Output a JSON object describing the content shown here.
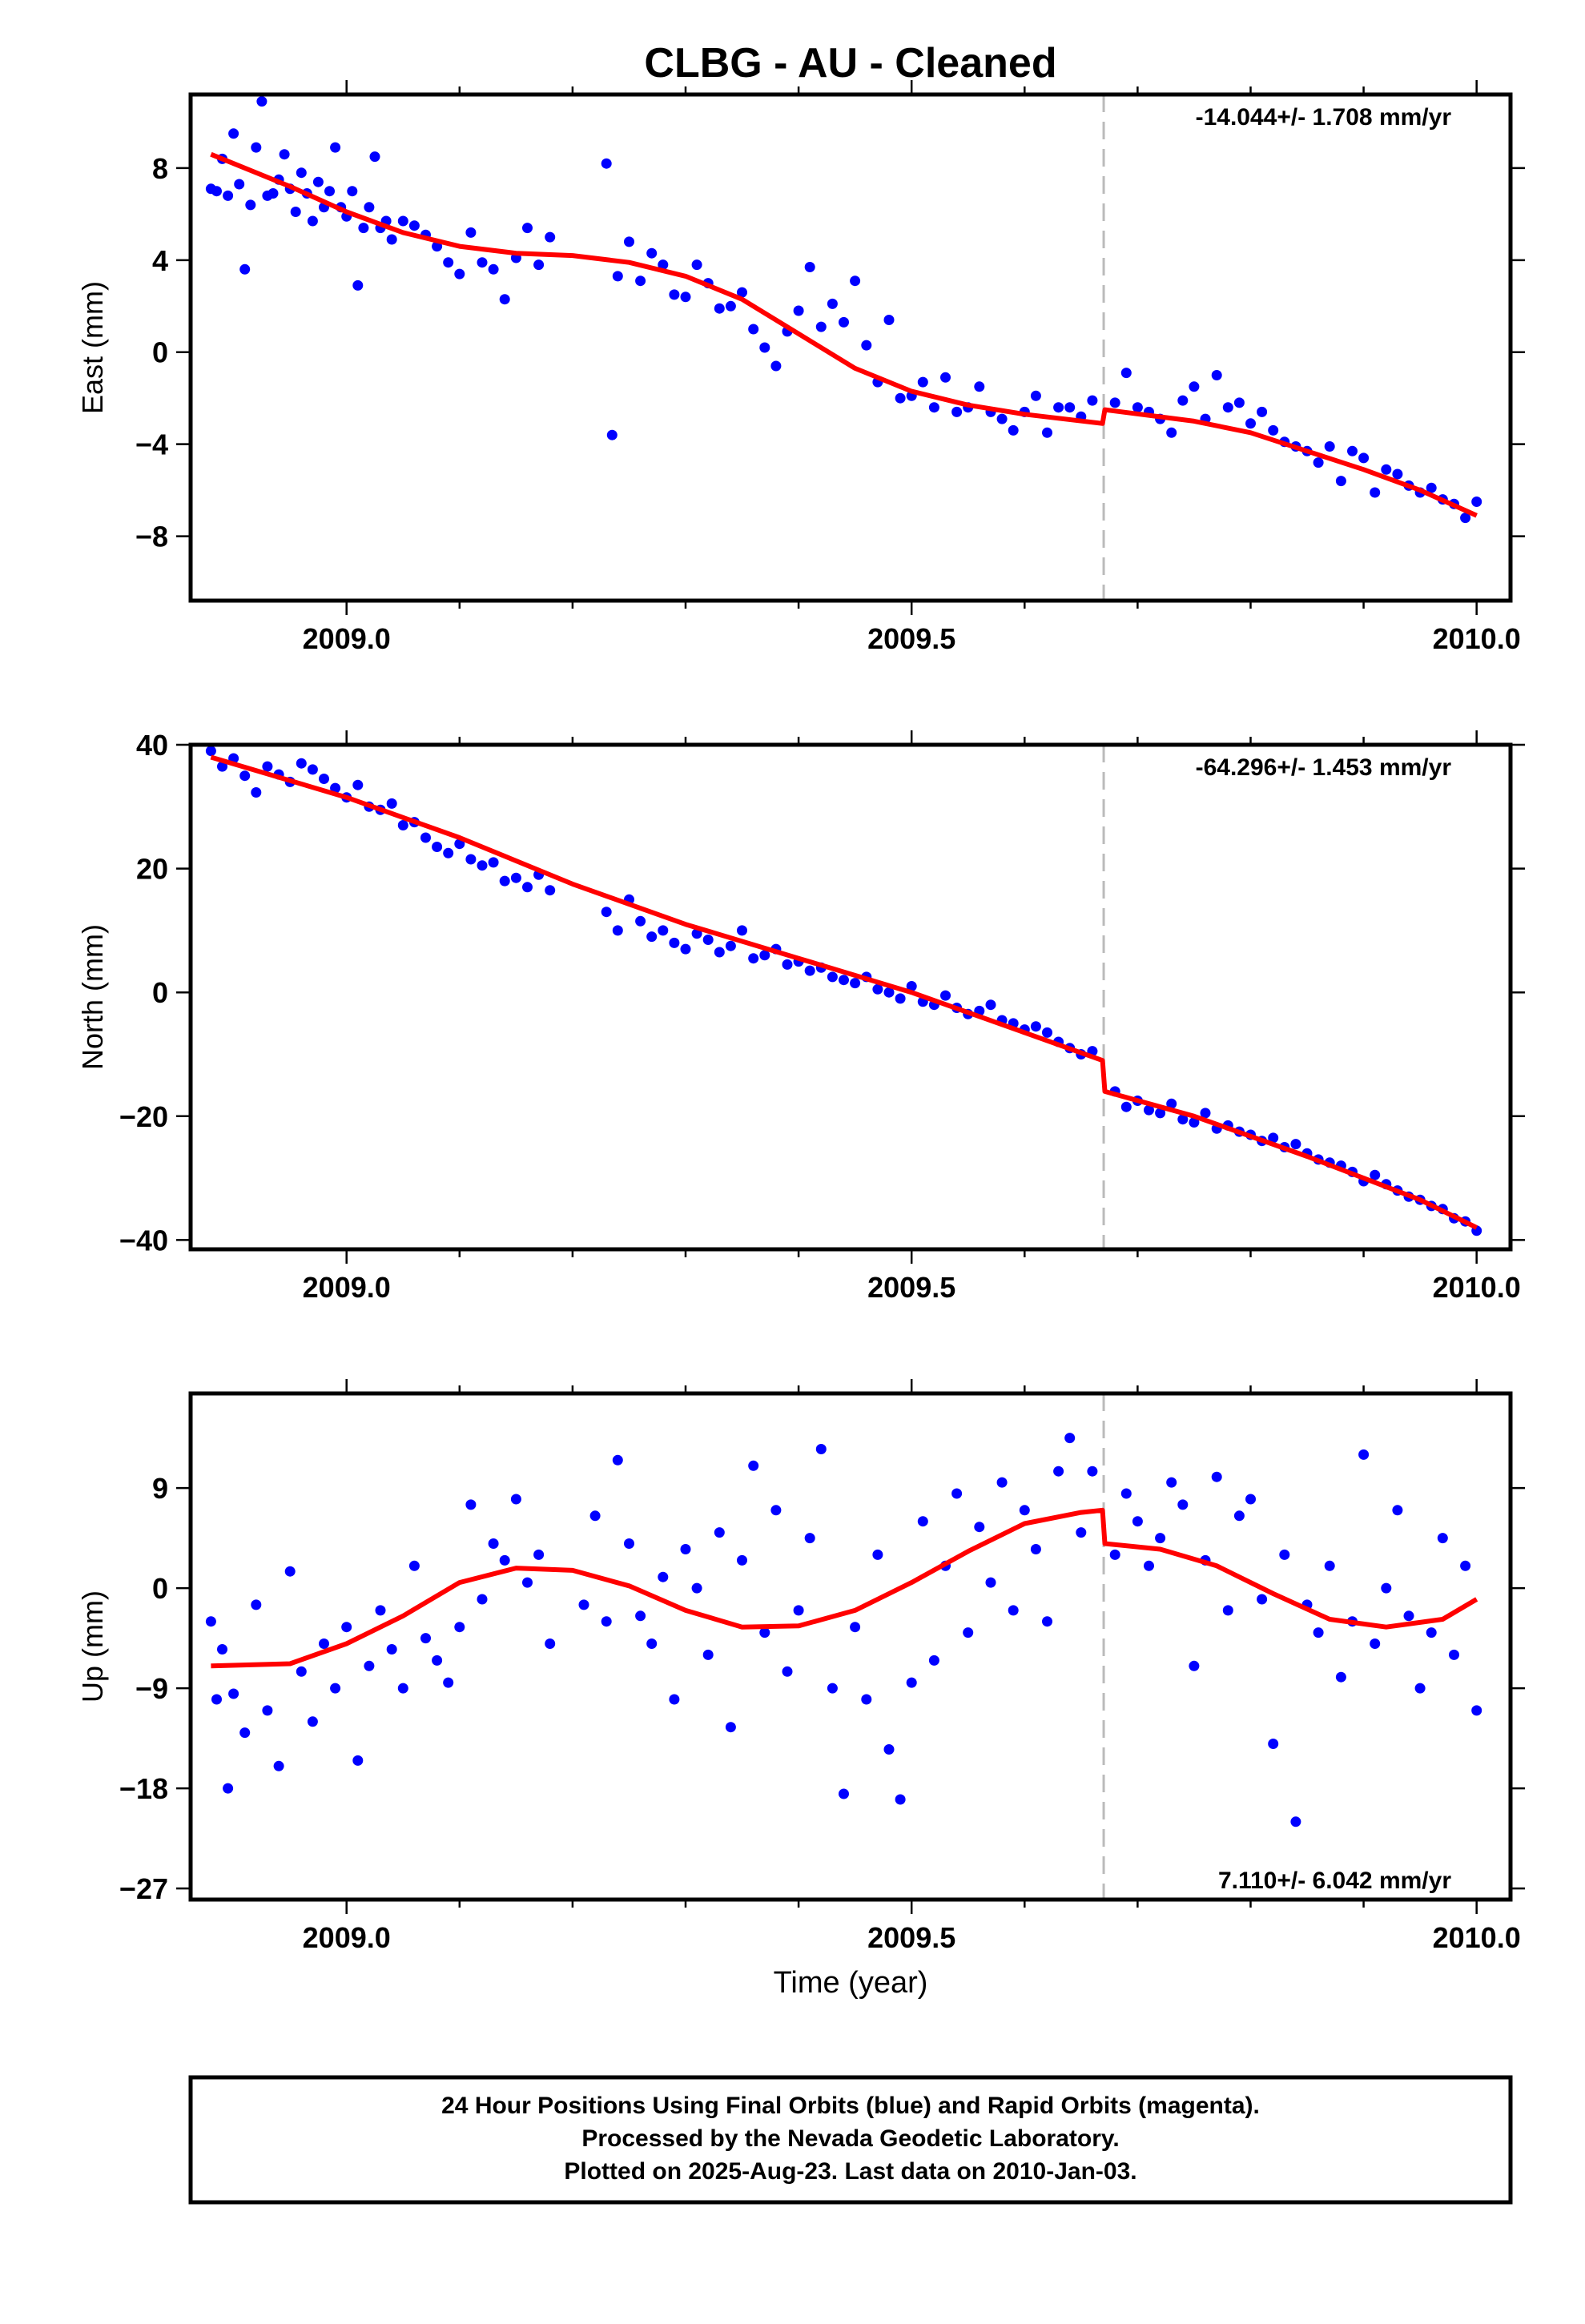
{
  "chart_data": {
    "type": "scatter",
    "title": "CLBG  - AU - Cleaned",
    "xlabel": "Time (year)",
    "x_ticks": [
      "2009.0",
      "2009.5",
      "2010.0"
    ],
    "xlim": [
      2008.862,
      2010.03
    ],
    "offset_epoch": 2009.67,
    "colors": {
      "points": "#0000ff",
      "model": "#ff0000",
      "offset_line": "#bbbbbb"
    },
    "panels": [
      {
        "name": "east",
        "ylabel": "East (mm)",
        "ylim": [
          -10.8,
          11.2
        ],
        "y_ticks": [
          "8",
          "4",
          "0",
          "−4",
          "−8"
        ],
        "y_tick_values": [
          8,
          4,
          0,
          -4,
          -8
        ],
        "rate_text": "-14.044+/- 1.708 mm/yr",
        "rate_position": "top-right",
        "model": {
          "x": [
            2008.88,
            2008.95,
            2009.0,
            2009.05,
            2009.1,
            2009.15,
            2009.2,
            2009.25,
            2009.3,
            2009.35,
            2009.4,
            2009.45,
            2009.5,
            2009.55,
            2009.6,
            2009.669,
            2009.671,
            2009.75,
            2009.8,
            2009.85,
            2009.9,
            2009.95,
            2010.0
          ],
          "y": [
            8.6,
            7.2,
            6.1,
            5.2,
            4.6,
            4.3,
            4.2,
            3.9,
            3.3,
            2.3,
            0.8,
            -0.7,
            -1.7,
            -2.3,
            -2.7,
            -3.1,
            -2.5,
            -3.0,
            -3.5,
            -4.3,
            -5.1,
            -6.0,
            -7.1
          ]
        },
        "points": {
          "x": [
            2008.88,
            2008.885,
            2008.89,
            2008.895,
            2008.9,
            2008.905,
            2008.91,
            2008.915,
            2008.92,
            2008.925,
            2008.93,
            2008.935,
            2008.94,
            2008.945,
            2008.95,
            2008.955,
            2008.96,
            2008.965,
            2008.97,
            2008.975,
            2008.98,
            2008.985,
            2008.99,
            2008.995,
            2009.0,
            2009.005,
            2009.01,
            2009.015,
            2009.02,
            2009.025,
            2009.03,
            2009.035,
            2009.04,
            2009.05,
            2009.06,
            2009.07,
            2009.08,
            2009.09,
            2009.1,
            2009.11,
            2009.12,
            2009.13,
            2009.14,
            2009.15,
            2009.16,
            2009.17,
            2009.18,
            2009.23,
            2009.235,
            2009.24,
            2009.25,
            2009.26,
            2009.27,
            2009.28,
            2009.29,
            2009.3,
            2009.31,
            2009.32,
            2009.33,
            2009.34,
            2009.35,
            2009.36,
            2009.37,
            2009.38,
            2009.39,
            2009.4,
            2009.41,
            2009.42,
            2009.43,
            2009.44,
            2009.45,
            2009.46,
            2009.47,
            2009.48,
            2009.49,
            2009.5,
            2009.51,
            2009.52,
            2009.53,
            2009.54,
            2009.55,
            2009.56,
            2009.57,
            2009.58,
            2009.59,
            2009.6,
            2009.61,
            2009.62,
            2009.63,
            2009.64,
            2009.65,
            2009.66,
            2009.68,
            2009.69,
            2009.7,
            2009.71,
            2009.72,
            2009.73,
            2009.74,
            2009.75,
            2009.76,
            2009.77,
            2009.78,
            2009.79,
            2009.8,
            2009.81,
            2009.82,
            2009.83,
            2009.84,
            2009.85,
            2009.86,
            2009.87,
            2009.88,
            2009.89,
            2009.9,
            2009.91,
            2009.92,
            2009.93,
            2009.94,
            2009.95,
            2009.96,
            2009.97,
            2009.98,
            2009.99,
            2010.0
          ],
          "y": [
            7.1,
            7.0,
            8.4,
            6.8,
            9.5,
            7.3,
            3.6,
            6.4,
            8.9,
            10.9,
            6.8,
            6.9,
            7.5,
            8.6,
            7.1,
            6.1,
            7.8,
            6.9,
            5.7,
            7.4,
            6.3,
            7.0,
            8.9,
            6.3,
            5.9,
            7.0,
            2.9,
            5.4,
            6.3,
            8.5,
            5.4,
            5.7,
            4.9,
            5.7,
            5.5,
            5.1,
            4.6,
            3.9,
            3.4,
            5.2,
            3.9,
            3.6,
            2.3,
            4.1,
            5.4,
            3.8,
            5.0,
            8.2,
            -3.6,
            3.3,
            4.8,
            3.1,
            4.3,
            3.8,
            2.5,
            2.4,
            3.8,
            3.0,
            1.9,
            2.0,
            2.6,
            1.0,
            0.2,
            -0.6,
            0.9,
            1.8,
            3.7,
            1.1,
            2.1,
            1.3,
            3.1,
            0.3,
            -1.3,
            1.4,
            -2.0,
            -1.9,
            -1.3,
            -2.4,
            -1.1,
            -2.6,
            -2.4,
            -1.5,
            -2.6,
            -2.9,
            -3.4,
            -2.6,
            -1.9,
            -3.5,
            -2.4,
            -2.4,
            -2.8,
            -2.1,
            -2.2,
            -0.9,
            -2.4,
            -2.6,
            -2.9,
            -3.5,
            -2.1,
            -1.5,
            -2.9,
            -1.0,
            -2.4,
            -2.2,
            -3.1,
            -2.6,
            -3.4,
            -3.9,
            -4.1,
            -4.3,
            -4.8,
            -4.1,
            -5.6,
            -4.3,
            -4.6,
            -6.1,
            -5.1,
            -5.3,
            -5.8,
            -6.1,
            -5.9,
            -6.4,
            -6.6,
            -7.2,
            -6.5
          ]
        }
      },
      {
        "name": "north",
        "ylabel": "North (mm)",
        "ylim": [
          -41.5,
          40.0
        ],
        "y_ticks": [
          "40",
          "20",
          "0",
          "−20",
          "−40"
        ],
        "y_tick_values": [
          40,
          20,
          0,
          -20,
          -40
        ],
        "rate_text": "-64.296+/- 1.453 mm/yr",
        "rate_position": "top-right",
        "model": {
          "x": [
            2008.88,
            2009.0,
            2009.1,
            2009.2,
            2009.3,
            2009.4,
            2009.5,
            2009.6,
            2009.669,
            2009.671,
            2009.75,
            2009.85,
            2009.95,
            2010.0
          ],
          "y": [
            38.0,
            31.5,
            25.0,
            17.5,
            11.0,
            5.5,
            0.0,
            -6.5,
            -11.0,
            -16.0,
            -20.0,
            -26.5,
            -33.5,
            -38.0
          ]
        },
        "points": {
          "x": [
            2008.88,
            2008.89,
            2008.9,
            2008.91,
            2008.92,
            2008.93,
            2008.94,
            2008.95,
            2008.96,
            2008.97,
            2008.98,
            2008.99,
            2009.0,
            2009.01,
            2009.02,
            2009.03,
            2009.04,
            2009.05,
            2009.06,
            2009.07,
            2009.08,
            2009.09,
            2009.1,
            2009.11,
            2009.12,
            2009.13,
            2009.14,
            2009.15,
            2009.16,
            2009.17,
            2009.18,
            2009.23,
            2009.24,
            2009.25,
            2009.26,
            2009.27,
            2009.28,
            2009.29,
            2009.3,
            2009.31,
            2009.32,
            2009.33,
            2009.34,
            2009.35,
            2009.36,
            2009.37,
            2009.38,
            2009.39,
            2009.4,
            2009.41,
            2009.42,
            2009.43,
            2009.44,
            2009.45,
            2009.46,
            2009.47,
            2009.48,
            2009.49,
            2009.5,
            2009.51,
            2009.52,
            2009.53,
            2009.54,
            2009.55,
            2009.56,
            2009.57,
            2009.58,
            2009.59,
            2009.6,
            2009.61,
            2009.62,
            2009.63,
            2009.64,
            2009.65,
            2009.66,
            2009.68,
            2009.69,
            2009.7,
            2009.71,
            2009.72,
            2009.73,
            2009.74,
            2009.75,
            2009.76,
            2009.77,
            2009.78,
            2009.79,
            2009.8,
            2009.81,
            2009.82,
            2009.83,
            2009.84,
            2009.85,
            2009.86,
            2009.87,
            2009.88,
            2009.89,
            2009.9,
            2009.91,
            2009.92,
            2009.93,
            2009.94,
            2009.95,
            2009.96,
            2009.97,
            2009.98,
            2009.99,
            2010.0
          ],
          "y": [
            39.0,
            36.5,
            37.8,
            35.0,
            32.3,
            36.5,
            35.2,
            34.0,
            37.0,
            36.0,
            34.5,
            33.0,
            31.5,
            33.5,
            30.0,
            29.5,
            30.5,
            27.0,
            27.5,
            25.0,
            23.5,
            22.5,
            24.0,
            21.5,
            20.5,
            21.0,
            18.0,
            18.5,
            17.0,
            19.0,
            16.5,
            13.0,
            10.0,
            15.0,
            11.5,
            9.0,
            10.0,
            8.0,
            7.0,
            9.5,
            8.5,
            6.5,
            7.5,
            10.0,
            5.5,
            6.0,
            7.0,
            4.5,
            5.0,
            3.5,
            4.0,
            2.5,
            2.0,
            1.5,
            2.5,
            0.5,
            0.0,
            -1.0,
            1.0,
            -1.5,
            -2.0,
            -0.5,
            -2.5,
            -3.5,
            -3.0,
            -2.0,
            -4.5,
            -5.0,
            -6.0,
            -5.5,
            -6.5,
            -8.0,
            -9.0,
            -10.0,
            -9.5,
            -16.0,
            -18.5,
            -17.5,
            -19.0,
            -19.5,
            -18.0,
            -20.5,
            -21.0,
            -19.5,
            -22.0,
            -21.5,
            -22.5,
            -23.0,
            -24.0,
            -23.5,
            -25.0,
            -24.5,
            -26.0,
            -27.0,
            -27.5,
            -28.0,
            -29.0,
            -30.5,
            -29.5,
            -31.0,
            -32.0,
            -33.0,
            -33.5,
            -34.5,
            -35.0,
            -36.5,
            -37.0,
            -38.5
          ]
        }
      },
      {
        "name": "up",
        "ylabel": "Up (mm)",
        "ylim": [
          -28.0,
          17.5
        ],
        "y_ticks": [
          "9",
          "0",
          "−9",
          "−18",
          "−27"
        ],
        "y_tick_values": [
          9,
          0,
          -9,
          -18,
          -27
        ],
        "rate_text": "7.110+/- 6.042 mm/yr",
        "rate_position": "bottom-right",
        "model": {
          "x": [
            2008.88,
            2008.95,
            2009.0,
            2009.05,
            2009.1,
            2009.15,
            2009.2,
            2009.25,
            2009.3,
            2009.35,
            2009.4,
            2009.45,
            2009.5,
            2009.55,
            2009.6,
            2009.65,
            2009.669,
            2009.671,
            2009.72,
            2009.77,
            2009.82,
            2009.87,
            2009.92,
            2009.97,
            2010.0
          ],
          "y": [
            -7.0,
            -6.8,
            -5.0,
            -2.5,
            0.5,
            1.8,
            1.6,
            0.2,
            -2.0,
            -3.5,
            -3.4,
            -2.0,
            0.5,
            3.3,
            5.8,
            6.8,
            7.0,
            4.0,
            3.5,
            2.0,
            -0.5,
            -2.8,
            -3.5,
            -2.8,
            -1.0
          ]
        },
        "points": {
          "x": [
            2008.88,
            2008.885,
            2008.89,
            2008.895,
            2008.9,
            2008.91,
            2008.92,
            2008.93,
            2008.94,
            2008.95,
            2008.96,
            2008.97,
            2008.98,
            2008.99,
            2009.0,
            2009.01,
            2009.02,
            2009.03,
            2009.04,
            2009.05,
            2009.06,
            2009.07,
            2009.08,
            2009.09,
            2009.1,
            2009.11,
            2009.12,
            2009.13,
            2009.14,
            2009.15,
            2009.16,
            2009.17,
            2009.18,
            2009.21,
            2009.22,
            2009.23,
            2009.24,
            2009.25,
            2009.26,
            2009.27,
            2009.28,
            2009.29,
            2009.3,
            2009.31,
            2009.32,
            2009.33,
            2009.34,
            2009.35,
            2009.36,
            2009.37,
            2009.38,
            2009.39,
            2009.4,
            2009.41,
            2009.42,
            2009.43,
            2009.44,
            2009.45,
            2009.46,
            2009.47,
            2009.48,
            2009.49,
            2009.5,
            2009.51,
            2009.52,
            2009.53,
            2009.54,
            2009.55,
            2009.56,
            2009.57,
            2009.58,
            2009.59,
            2009.6,
            2009.61,
            2009.62,
            2009.63,
            2009.64,
            2009.65,
            2009.66,
            2009.68,
            2009.69,
            2009.7,
            2009.71,
            2009.72,
            2009.73,
            2009.74,
            2009.75,
            2009.76,
            2009.77,
            2009.78,
            2009.79,
            2009.8,
            2009.81,
            2009.82,
            2009.83,
            2009.84,
            2009.85,
            2009.86,
            2009.87,
            2009.88,
            2009.89,
            2009.9,
            2009.91,
            2009.92,
            2009.93,
            2009.94,
            2009.95,
            2009.96,
            2009.97,
            2009.98,
            2009.99,
            2010.0
          ],
          "y": [
            -3.0,
            -10.0,
            -5.5,
            -18.0,
            -9.5,
            -13.0,
            -1.5,
            -11.0,
            -16.0,
            1.5,
            -7.5,
            -12.0,
            -5.0,
            -9.0,
            -3.5,
            -15.5,
            -7.0,
            -2.0,
            -5.5,
            -9.0,
            2.0,
            -4.5,
            -6.5,
            -8.5,
            -3.5,
            7.5,
            -1.0,
            4.0,
            2.5,
            8.0,
            0.5,
            3.0,
            -5.0,
            -1.5,
            6.5,
            -3.0,
            11.5,
            4.0,
            -2.5,
            -5.0,
            1.0,
            -10.0,
            3.5,
            0.0,
            -6.0,
            5.0,
            -12.5,
            2.5,
            11.0,
            -4.0,
            7.0,
            -7.5,
            -2.0,
            4.5,
            12.5,
            -9.0,
            -18.5,
            -3.5,
            -10.0,
            3.0,
            -14.5,
            -19.0,
            -8.5,
            6.0,
            -6.5,
            2.0,
            8.5,
            -4.0,
            5.5,
            0.5,
            9.5,
            -2.0,
            7.0,
            3.5,
            -3.0,
            10.5,
            13.5,
            5.0,
            10.5,
            3.0,
            8.5,
            6.0,
            2.0,
            4.5,
            9.5,
            7.5,
            -7.0,
            2.5,
            10.0,
            -2.0,
            6.5,
            8.0,
            -1.0,
            -14.0,
            3.0,
            -21.0,
            -1.5,
            -4.0,
            2.0,
            -8.0,
            -3.0,
            12.0,
            -5.0,
            0.0,
            7.0,
            -2.5,
            -9.0,
            -4.0,
            4.5,
            -6.0,
            2.0,
            -11.0
          ]
        }
      }
    ]
  },
  "footer": {
    "line1": "24 Hour Positions Using Final Orbits (blue) and Rapid Orbits (magenta).",
    "line2": "Processed by the Nevada Geodetic Laboratory.",
    "line3": "Plotted on 2025-Aug-23. Last data on 2010-Jan-03."
  }
}
